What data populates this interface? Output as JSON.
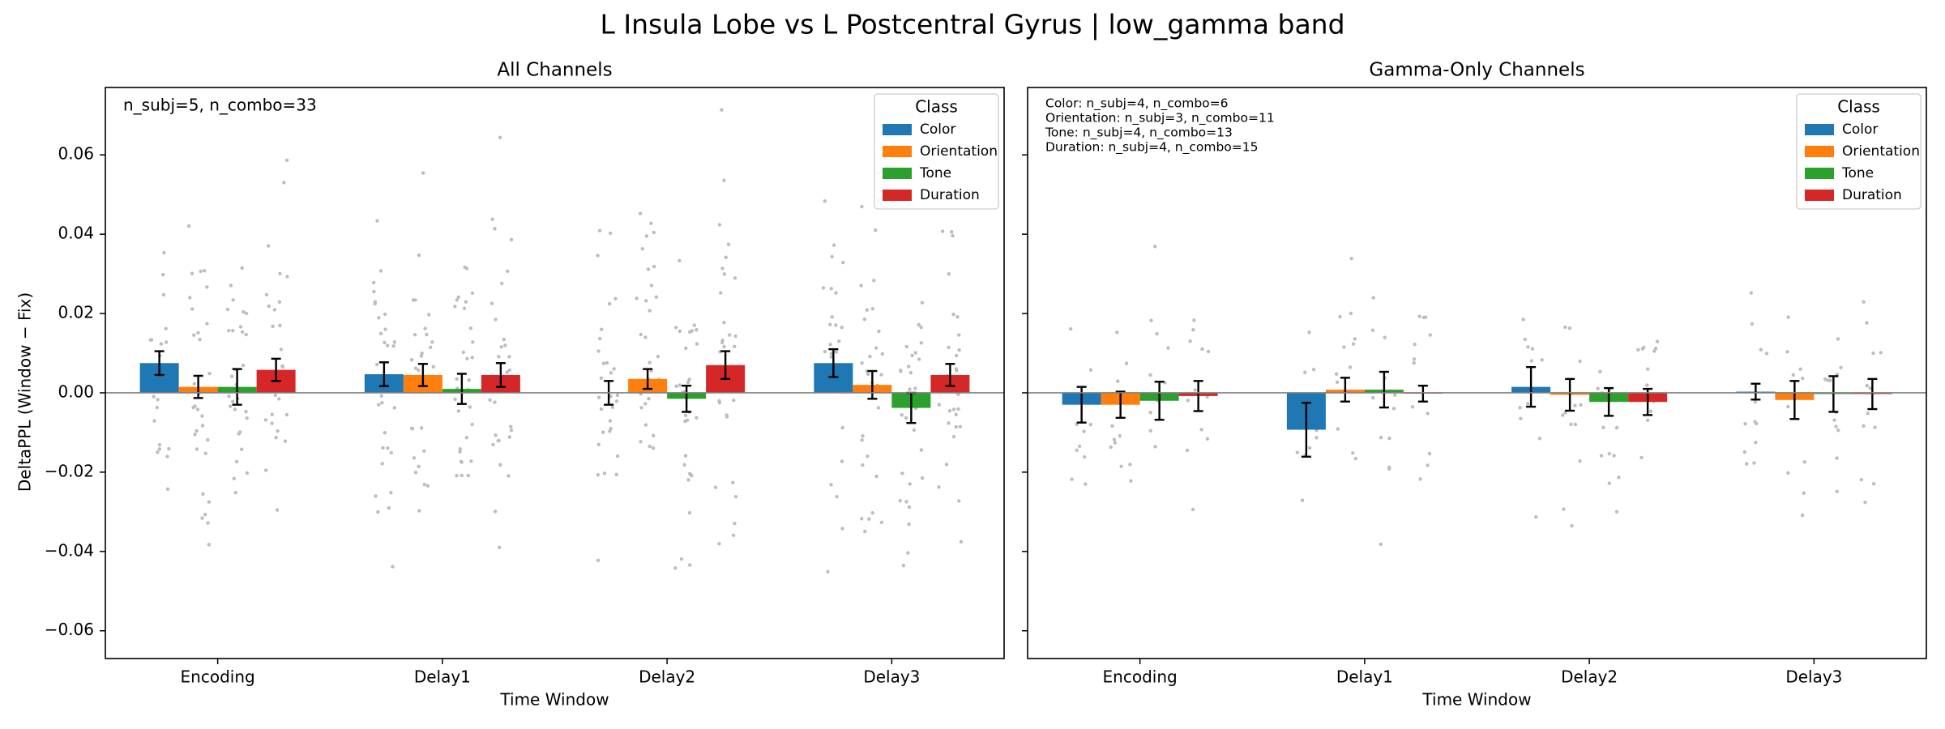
{
  "figure": {
    "suptitle": "L Insula Lobe vs L Postcentral Gyrus  |  low_gamma band",
    "ylabel": "DeltaPPL (Window − Fix)",
    "xlabel": "Time Window"
  },
  "legend": {
    "title": "Class",
    "entries": [
      {
        "name": "Color",
        "color": "#1f77b4"
      },
      {
        "name": "Orientation",
        "color": "#ff7f0e"
      },
      {
        "name": "Tone",
        "color": "#2ca02c"
      },
      {
        "name": "Duration",
        "color": "#d62728"
      }
    ],
    "placement": "top-right"
  },
  "chart_data": [
    {
      "type": "bar",
      "title": "All Channels",
      "xlabel": "Time Window",
      "ylabel": "DeltaPPL (Window − Fix)",
      "ylim": [
        -0.067,
        0.077
      ],
      "yticks": [
        "0.06",
        "0.04",
        "0.02",
        "0.00",
        "−0.02",
        "−0.04",
        "−0.06"
      ],
      "categories": [
        "Encoding",
        "Delay1",
        "Delay2",
        "Delay3"
      ],
      "annotation": [
        "n_subj=5, n_combo=33"
      ],
      "grid": false,
      "series": [
        {
          "name": "Color",
          "values": [
            0.0075,
            0.0047,
            0.0,
            0.0075
          ],
          "errors": [
            0.003,
            0.003,
            0.003,
            0.0035
          ]
        },
        {
          "name": "Orientation",
          "values": [
            0.0015,
            0.0045,
            0.0035,
            0.002
          ],
          "errors": [
            0.0028,
            0.0028,
            0.0025,
            0.0035
          ]
        },
        {
          "name": "Tone",
          "values": [
            0.0015,
            0.001,
            -0.0015,
            -0.0038
          ],
          "errors": [
            0.0045,
            0.0038,
            0.0033,
            0.0038
          ]
        },
        {
          "name": "Duration",
          "values": [
            0.0058,
            0.0045,
            0.007,
            0.0045
          ],
          "errors": [
            0.0028,
            0.003,
            0.0035,
            0.0028
          ]
        }
      ]
    },
    {
      "type": "bar",
      "title": "Gamma-Only Channels",
      "xlabel": "Time Window",
      "ylim": [
        -0.067,
        0.077
      ],
      "categories": [
        "Encoding",
        "Delay1",
        "Delay2",
        "Delay3"
      ],
      "annotation": [
        "Color: n_subj=4, n_combo=6",
        "Orientation: n_subj=3, n_combo=11",
        "Tone: n_subj=4, n_combo=13",
        "Duration: n_subj=4, n_combo=15"
      ],
      "grid": false,
      "series": [
        {
          "name": "Color",
          "values": [
            -0.003,
            -0.0093,
            0.0015,
            0.0003
          ],
          "errors": [
            0.0045,
            0.0068,
            0.005,
            0.002
          ]
        },
        {
          "name": "Orientation",
          "values": [
            -0.003,
            0.0008,
            -0.0005,
            -0.0018
          ],
          "errors": [
            0.0033,
            0.003,
            0.004,
            0.0048
          ]
        },
        {
          "name": "Tone",
          "values": [
            -0.002,
            0.0008,
            -0.0023,
            -0.0003
          ],
          "errors": [
            0.0048,
            0.0045,
            0.0035,
            0.0045
          ]
        },
        {
          "name": "Duration",
          "values": [
            -0.0008,
            -0.0002,
            -0.0023,
            -0.0003
          ],
          "errors": [
            0.0038,
            0.002,
            0.0033,
            0.0038
          ]
        }
      ]
    }
  ]
}
